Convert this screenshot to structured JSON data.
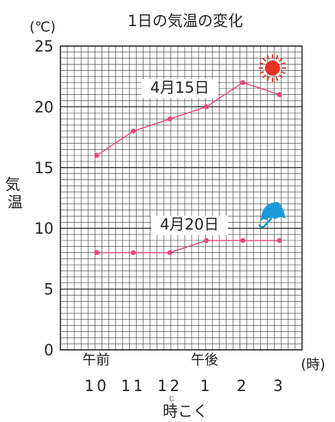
{
  "chart_data": {
    "type": "line",
    "title": "1日の気温の変化",
    "unit_label": "(℃)",
    "ylabel": "気温",
    "xlabel": "時こく",
    "xlabel_ruby": "じ",
    "x_unit": "(時)",
    "period_labels": {
      "am": "午前",
      "pm": "午後"
    },
    "categories": [
      "10",
      "11",
      "12",
      "1",
      "2",
      "3"
    ],
    "ylim": [
      0,
      25
    ],
    "y_ticks": [
      "0",
      "5",
      "10",
      "15",
      "20",
      "25"
    ],
    "grid": true,
    "series": [
      {
        "name": "4月15日",
        "values": [
          16,
          18,
          19,
          20,
          22,
          21
        ],
        "icon": "sun-icon"
      },
      {
        "name": "4月20日",
        "values": [
          8,
          8,
          8,
          9,
          9,
          9
        ],
        "icon": "umbrella-icon"
      }
    ],
    "colors": {
      "line": "#e8467c",
      "grid": "#222222",
      "sun": "#e53224",
      "umbrella": "#1a9ad6"
    }
  }
}
